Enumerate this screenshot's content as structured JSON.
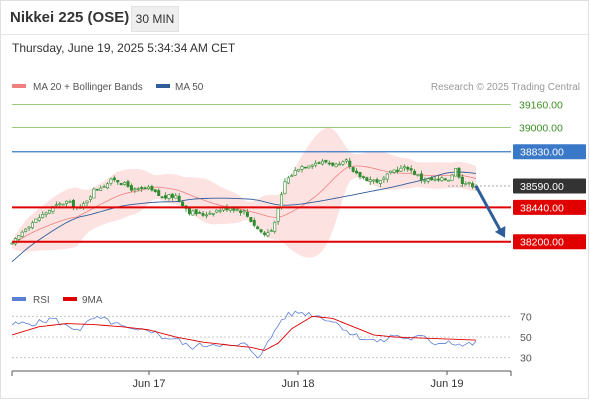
{
  "header": {
    "title": "Nikkei 225 (OSE)",
    "timeframe": "30 MIN"
  },
  "subheader": {
    "datetime": "Thursday, June 19, 2025 5:34:34 AM CET"
  },
  "legend": {
    "items": [
      {
        "label": "MA 20 + Bollinger Bands",
        "color": "#f08080"
      },
      {
        "label": "MA 50",
        "color": "#2f5d9a"
      }
    ],
    "credit": "Research © 2025 Trading Central"
  },
  "colors": {
    "candle": "#2e8b2e",
    "resistance": "#8cc36a",
    "pivot": "#3a78c8",
    "support": "#e00000",
    "current": "#333333",
    "arrow": "#2f5d9a",
    "band": "#fde2e2",
    "ma20": "#f08080",
    "ma50": "#2f5d9a",
    "rsi": "#5b7fd6",
    "rsi_ma": "#e00000"
  },
  "chart_data": [
    {
      "type": "candlestick",
      "title": "Nikkei 225 (OSE)",
      "interval": "30 MIN",
      "ylim": [
        37960,
        39220
      ],
      "x_tick_labels": [
        "Jun 17",
        "Jun 18",
        "Jun 19"
      ],
      "levels": [
        {
          "value": 39160.0,
          "label": "39160.00",
          "kind": "resistance"
        },
        {
          "value": 39000.0,
          "label": "39000.00",
          "kind": "resistance"
        },
        {
          "value": 38830.0,
          "label": "38830.00",
          "kind": "pivot"
        },
        {
          "value": 38590.0,
          "label": "38590.00",
          "kind": "current"
        },
        {
          "value": 38440.0,
          "label": "38440.00",
          "kind": "support"
        },
        {
          "value": 38200.0,
          "label": "38200.00",
          "kind": "support"
        }
      ],
      "forecast_arrow": {
        "from": 38590,
        "to": 38200
      },
      "series": [
        {
          "name": "MA 20 + Bollinger Bands"
        },
        {
          "name": "MA 50"
        }
      ],
      "price_path": [
        [
          0,
          38180
        ],
        [
          4,
          38300
        ],
        [
          8,
          38370
        ],
        [
          12,
          38440
        ],
        [
          16,
          38480
        ],
        [
          20,
          38430
        ],
        [
          24,
          38560
        ],
        [
          28,
          38610
        ],
        [
          30,
          38640
        ],
        [
          36,
          38560
        ],
        [
          40,
          38570
        ],
        [
          44,
          38510
        ],
        [
          48,
          38520
        ],
        [
          52,
          38410
        ],
        [
          56,
          38390
        ],
        [
          60,
          38420
        ],
        [
          64,
          38440
        ],
        [
          68,
          38410
        ],
        [
          72,
          38290
        ],
        [
          74,
          38250
        ],
        [
          76,
          38280
        ],
        [
          78,
          38420
        ],
        [
          80,
          38620
        ],
        [
          84,
          38720
        ],
        [
          88,
          38750
        ],
        [
          92,
          38760
        ],
        [
          96,
          38730
        ],
        [
          98,
          38760
        ],
        [
          100,
          38680
        ],
        [
          104,
          38640
        ],
        [
          108,
          38620
        ],
        [
          112,
          38700
        ],
        [
          116,
          38720
        ],
        [
          120,
          38640
        ],
        [
          124,
          38630
        ],
        [
          128,
          38640
        ],
        [
          130,
          38710
        ],
        [
          132,
          38620
        ],
        [
          136,
          38590
        ]
      ]
    },
    {
      "type": "line",
      "title": "RSI",
      "ylim": [
        20,
        80
      ],
      "y_ticks": [
        70,
        50,
        30
      ],
      "series": [
        {
          "name": "RSI"
        },
        {
          "name": "9MA"
        }
      ],
      "rsi_path": [
        [
          0,
          62
        ],
        [
          8,
          64
        ],
        [
          12,
          68
        ],
        [
          16,
          60
        ],
        [
          20,
          58
        ],
        [
          24,
          68
        ],
        [
          28,
          66
        ],
        [
          32,
          60
        ],
        [
          36,
          55
        ],
        [
          40,
          58
        ],
        [
          44,
          50
        ],
        [
          48,
          48
        ],
        [
          52,
          40
        ],
        [
          56,
          42
        ],
        [
          60,
          44
        ],
        [
          64,
          40
        ],
        [
          68,
          43
        ],
        [
          72,
          32
        ],
        [
          74,
          38
        ],
        [
          76,
          50
        ],
        [
          78,
          62
        ],
        [
          80,
          70
        ],
        [
          84,
          74
        ],
        [
          88,
          72
        ],
        [
          92,
          68
        ],
        [
          96,
          62
        ],
        [
          100,
          52
        ],
        [
          104,
          48
        ],
        [
          108,
          45
        ],
        [
          112,
          52
        ],
        [
          116,
          48
        ],
        [
          120,
          50
        ],
        [
          124,
          44
        ],
        [
          128,
          46
        ],
        [
          132,
          42
        ],
        [
          136,
          44
        ]
      ],
      "ma_path": [
        [
          0,
          52
        ],
        [
          8,
          60
        ],
        [
          16,
          63
        ],
        [
          24,
          62
        ],
        [
          32,
          60
        ],
        [
          40,
          57
        ],
        [
          48,
          50
        ],
        [
          56,
          45
        ],
        [
          64,
          42
        ],
        [
          70,
          40
        ],
        [
          74,
          37
        ],
        [
          78,
          44
        ],
        [
          82,
          58
        ],
        [
          88,
          70
        ],
        [
          94,
          68
        ],
        [
          100,
          60
        ],
        [
          106,
          52
        ],
        [
          112,
          50
        ],
        [
          120,
          49
        ],
        [
          128,
          48
        ],
        [
          136,
          47
        ]
      ]
    }
  ]
}
